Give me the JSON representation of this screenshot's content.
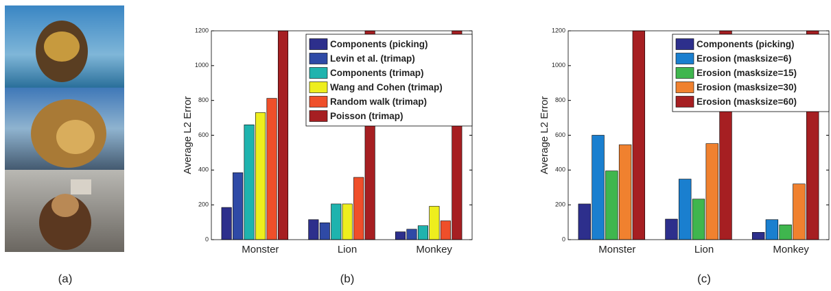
{
  "images": [
    {
      "caption": "(a)"
    }
  ],
  "chart_data": [
    {
      "type": "bar",
      "caption": "(b)",
      "ylabel": "Average L2 Error",
      "categories": [
        "Monster",
        "Lion",
        "Monkey"
      ],
      "ylim": [
        0,
        1200
      ],
      "yticks": [
        0,
        200,
        400,
        600,
        800,
        1000,
        1200
      ],
      "legend": "upper right",
      "series": [
        {
          "name": "Components (picking)",
          "color": "#2d2f8c",
          "values": [
            185,
            115,
            45
          ]
        },
        {
          "name": "Levin et al. (trimap)",
          "color": "#2f4aa6",
          "values": [
            385,
            97,
            60
          ]
        },
        {
          "name": "Components (trimap)",
          "color": "#1fb3ae",
          "values": [
            660,
            205,
            80
          ]
        },
        {
          "name": "Wang and Cohen (trimap)",
          "color": "#eeee1e",
          "values": [
            730,
            205,
            192
          ]
        },
        {
          "name": "Random walk (trimap)",
          "color": "#ef4f2a",
          "values": [
            812,
            358,
            108
          ]
        },
        {
          "name": "Poisson (trimap)",
          "color": "#a61f22",
          "values": [
            1200,
            1200,
            1200
          ]
        }
      ]
    },
    {
      "type": "bar",
      "caption": "(c)",
      "ylabel": "Average L2 Error",
      "categories": [
        "Monster",
        "Lion",
        "Monkey"
      ],
      "ylim": [
        0,
        1200
      ],
      "yticks": [
        0,
        200,
        400,
        600,
        800,
        1000,
        1200
      ],
      "legend": "upper right",
      "series": [
        {
          "name": "Components (picking)",
          "color": "#2d2f8c",
          "values": [
            205,
            118,
            42
          ]
        },
        {
          "name": "Erosion (masksize=6)",
          "color": "#1a7fcf",
          "values": [
            600,
            348,
            115
          ]
        },
        {
          "name": "Erosion (masksize=15)",
          "color": "#3fb64e",
          "values": [
            395,
            233,
            85
          ]
        },
        {
          "name": "Erosion (masksize=30)",
          "color": "#f0812f",
          "values": [
            545,
            552,
            320
          ]
        },
        {
          "name": "Erosion (masksize=60)",
          "color": "#a61f22",
          "values": [
            1200,
            1200,
            1200
          ]
        }
      ]
    }
  ]
}
